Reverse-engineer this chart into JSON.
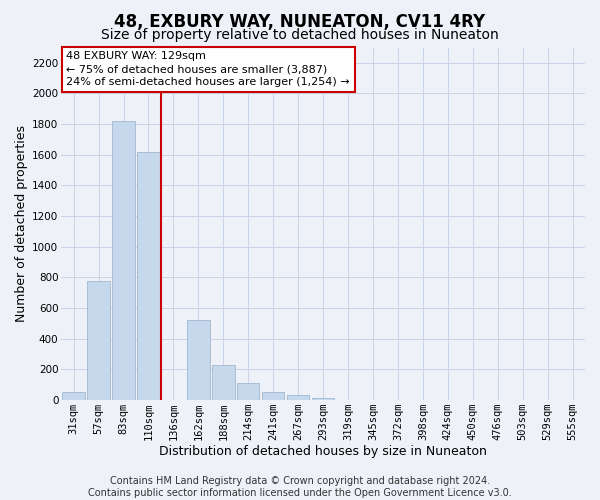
{
  "title": "48, EXBURY WAY, NUNEATON, CV11 4RY",
  "subtitle": "Size of property relative to detached houses in Nuneaton",
  "xlabel": "Distribution of detached houses by size in Nuneaton",
  "ylabel": "Number of detached properties",
  "bar_labels": [
    "31sqm",
    "57sqm",
    "83sqm",
    "110sqm",
    "136sqm",
    "162sqm",
    "188sqm",
    "214sqm",
    "241sqm",
    "267sqm",
    "293sqm",
    "319sqm",
    "345sqm",
    "372sqm",
    "398sqm",
    "424sqm",
    "450sqm",
    "476sqm",
    "503sqm",
    "529sqm",
    "555sqm"
  ],
  "bar_values": [
    50,
    775,
    1820,
    1620,
    0,
    520,
    230,
    110,
    55,
    30,
    15,
    0,
    0,
    0,
    0,
    0,
    0,
    0,
    0,
    0,
    0
  ],
  "bar_color": "#c5d8ec",
  "bar_edgecolor": "#a0b8d0",
  "vline_color": "#cc0000",
  "vline_x_index": 4,
  "annotation_line1": "48 EXBURY WAY: 129sqm",
  "annotation_line2": "← 75% of detached houses are smaller (3,887)",
  "annotation_line3": "24% of semi-detached houses are larger (1,254) →",
  "annotation_box_facecolor": "white",
  "annotation_box_edgecolor": "#cc0000",
  "ylim": [
    0,
    2300
  ],
  "yticks": [
    0,
    200,
    400,
    600,
    800,
    1000,
    1200,
    1400,
    1600,
    1800,
    2000,
    2200
  ],
  "footer_line1": "Contains HM Land Registry data © Crown copyright and database right 2024.",
  "footer_line2": "Contains public sector information licensed under the Open Government Licence v3.0.",
  "title_fontsize": 12,
  "subtitle_fontsize": 10,
  "axis_label_fontsize": 9,
  "tick_fontsize": 7.5,
  "annotation_fontsize": 8,
  "footer_fontsize": 7,
  "grid_color": "#c8d4e8",
  "background_color": "#eef2f8"
}
